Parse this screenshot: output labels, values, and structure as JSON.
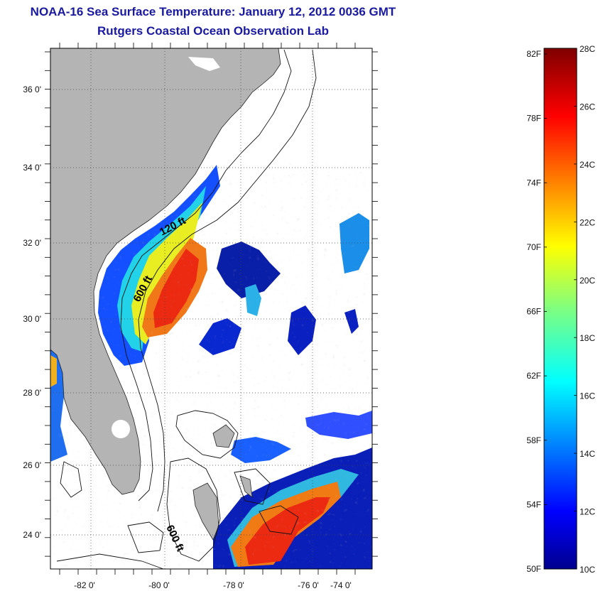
{
  "header": {
    "title": "NOAA-16 Sea Surface Temperature:  January 12, 2012 0036 GMT",
    "subtitle": "Rutgers Coastal Ocean Observation Lab"
  },
  "map": {
    "lon_ticks": [
      "-82 0'",
      "-80 0'",
      "-78 0'",
      "-76 0'",
      "-74 0'"
    ],
    "lat_ticks": [
      "36 0'",
      "34 0'",
      "32 0'",
      "30 0'",
      "28 0'",
      "26 0'",
      "24 0'"
    ],
    "contour_labels": [
      "120 ft",
      "600 ft",
      "600 ft"
    ],
    "land_color": "#b4b4b4",
    "ocean_color": "#ffffff"
  },
  "colorbar": {
    "fahrenheit_labels": [
      "82F",
      "78F",
      "74F",
      "70F",
      "66F",
      "62F",
      "58F",
      "54F",
      "50F"
    ],
    "celsius_labels": [
      "28C",
      "26C",
      "24C",
      "22C",
      "20C",
      "18C",
      "16C",
      "14C",
      "12C",
      "10C"
    ],
    "colormap": "jet"
  }
}
